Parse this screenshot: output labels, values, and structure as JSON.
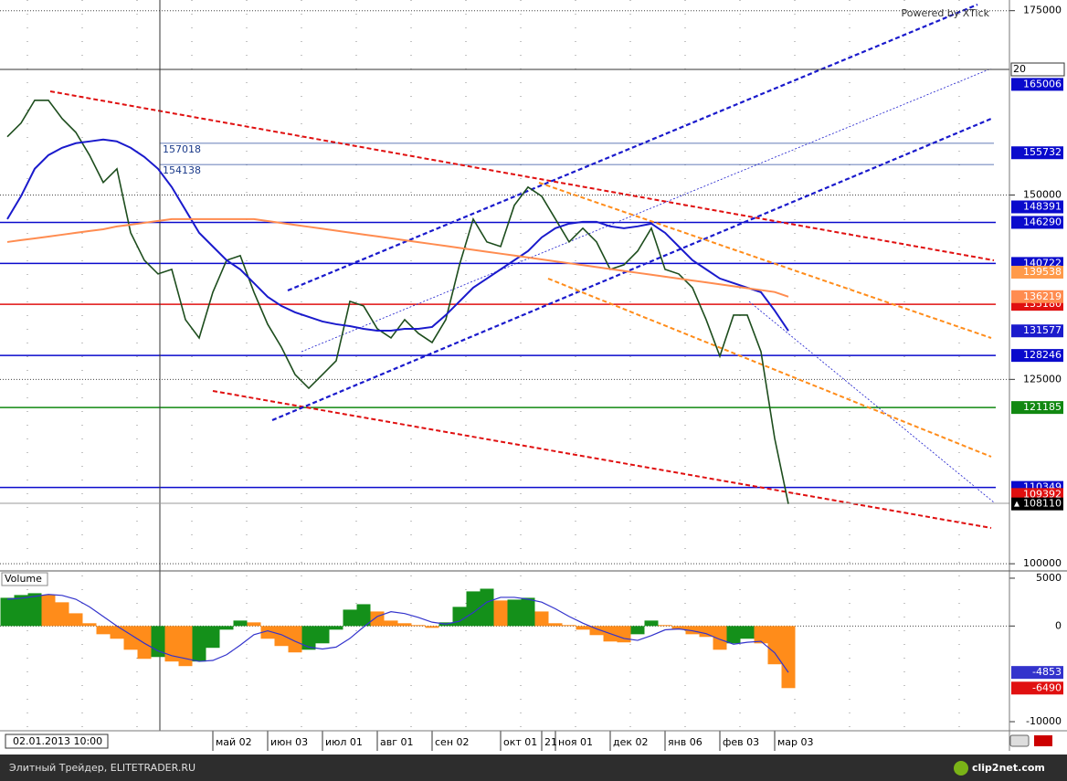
{
  "chart_data": [
    {
      "type": "line",
      "watermark": "Powered by XTick",
      "categories": [
        null,
        null,
        null,
        null,
        null,
        null,
        null,
        null,
        null,
        null,
        null,
        null,
        null,
        null,
        null,
        "май 02",
        null,
        null,
        null,
        "июн 03",
        null,
        null,
        null,
        "июл 01",
        null,
        null,
        null,
        "авг 01",
        null,
        null,
        null,
        "сен 02",
        null,
        null,
        null,
        null,
        "окт 01",
        null,
        null,
        "21",
        "ноя 01",
        null,
        null,
        null,
        "дек 02",
        null,
        null,
        null,
        "янв 06",
        null,
        null,
        null,
        "фев 03",
        null,
        null,
        null,
        "мар 03",
        null
      ],
      "series": [
        {
          "color": "#1d4d1d",
          "values": [
            157900,
            159750,
            162850,
            162850,
            160370,
            158500,
            155400,
            151700,
            153550,
            144900,
            141150,
            139300,
            139920,
            133100,
            130620,
            136820,
            141150,
            141780,
            136820,
            132480,
            129380,
            125660,
            123800,
            125660,
            127520,
            135580,
            134960,
            131860,
            130620,
            133100,
            131240,
            130000,
            133100,
            140540,
            146740,
            143640,
            143020,
            148600,
            151080,
            149840,
            146740,
            143640,
            145500,
            143640,
            139920,
            140540,
            142400,
            145500,
            139920,
            139300,
            137440,
            133100,
            128140,
            133720,
            133720,
            128760,
            117000,
            108110
          ]
        },
        {
          "color": "#1a1acc",
          "values": [
            146740,
            149840,
            153560,
            155410,
            156410,
            157030,
            157270,
            157520,
            157270,
            156410,
            155170,
            153560,
            151080,
            147980,
            144880,
            143020,
            141160,
            139920,
            138060,
            136200,
            134960,
            134090,
            133470,
            132850,
            132480,
            132230,
            131860,
            131610,
            131610,
            131860,
            131860,
            132110,
            133720,
            135580,
            137440,
            138680,
            139920,
            141160,
            142400,
            144260,
            145500,
            146120,
            146370,
            146370,
            145750,
            145500,
            145750,
            146120,
            144880,
            143020,
            141160,
            139920,
            138680,
            138060,
            137440,
            136820,
            134340,
            131577
          ]
        },
        {
          "color": "#ff8c50",
          "values": [
            143630,
            143880,
            144120,
            144370,
            144620,
            144870,
            145120,
            145360,
            145740,
            145980,
            146230,
            146480,
            146730,
            146730,
            146730,
            146730,
            146730,
            146730,
            146730,
            146470,
            146210,
            145950,
            145690,
            145430,
            145170,
            144910,
            144650,
            144390,
            144130,
            143870,
            143610,
            143350,
            143090,
            142830,
            142570,
            142310,
            142050,
            141790,
            141530,
            141270,
            141010,
            140750,
            140490,
            140230,
            139970,
            139710,
            139450,
            139190,
            138930,
            138670,
            138410,
            138150,
            137890,
            137630,
            137370,
            137110,
            136850,
            136219
          ]
        }
      ],
      "last_color": "#000000",
      "ylim": [
        99400,
        176200
      ],
      "yticks": [
        100000,
        125000,
        150000,
        175000
      ],
      "grid": true,
      "levels": [
        {
          "value": 165006,
          "color": "#0a0acc",
          "line": false
        },
        {
          "value": 155732,
          "color": "#0a0acc",
          "line": false
        },
        {
          "value": 148391,
          "color": "#0a0acc",
          "line": false
        },
        {
          "value": 146290,
          "color": "#0a0acc",
          "line": true
        },
        {
          "value": 140722,
          "color": "#0a0acc",
          "line": true
        },
        {
          "value": 139538,
          "color": "#ff9a4a",
          "line": false
        },
        {
          "value": 135180,
          "color": "#e01010",
          "line": true
        },
        {
          "value": 128246,
          "color": "#0a0acc",
          "line": true
        },
        {
          "value": 121185,
          "color": "#118811",
          "line": true
        },
        {
          "value": 110349,
          "color": "#0a0acc",
          "line": true
        },
        {
          "value": 109392,
          "color": "#e01010",
          "line": false
        }
      ],
      "marker_levels": [
        157018,
        154138
      ],
      "crosshair": {
        "label": "20",
        "date": "02.01.2013 10:00"
      }
    },
    {
      "type": "bar",
      "title": "Volume",
      "series": [
        {
          "type": "bar",
          "up_color": "#14901a",
          "down_color": "#ff8c1a",
          "values": [
            2950,
            3240,
            3430,
            3240,
            2480,
            1330,
            290,
            -860,
            -1330,
            -2480,
            -3430,
            -3240,
            -3710,
            -4190,
            -3710,
            -2280,
            -380,
            570,
            380,
            -1330,
            -2090,
            -2760,
            -2480,
            -1810,
            -380,
            1710,
            2280,
            1520,
            570,
            290,
            100,
            -190,
            380,
            2000,
            3620,
            3900,
            2670,
            2760,
            2950,
            1520,
            290,
            100,
            -380,
            -950,
            -1620,
            -1710,
            -860,
            570,
            100,
            -380,
            -860,
            -1140,
            -2480,
            -1810,
            -1330,
            -1810,
            -4000,
            -6490
          ],
          "last_color": "#e01010"
        },
        {
          "type": "line",
          "color": "#3333cc",
          "values": [
            2800,
            2900,
            3100,
            3300,
            3200,
            2800,
            2000,
            1000,
            0,
            -900,
            -1800,
            -2600,
            -3100,
            -3400,
            -3700,
            -3600,
            -3000,
            -2000,
            -900,
            -500,
            -900,
            -1600,
            -2200,
            -2400,
            -2200,
            -1300,
            -100,
            1000,
            1500,
            1300,
            900,
            400,
            200,
            500,
            1400,
            2500,
            3000,
            3000,
            2800,
            2500,
            1800,
            1000,
            300,
            -300,
            -800,
            -1300,
            -1500,
            -1000,
            -400,
            -300,
            -500,
            -800,
            -1400,
            -1900,
            -1700,
            -1600,
            -2800,
            -4853
          ]
        }
      ],
      "ylim": [
        -10950,
        5570
      ],
      "yticks": [
        5000,
        0,
        -10000
      ]
    }
  ],
  "footer": {
    "text": "Элитный Трейдер, ELITETRADER.RU",
    "brand": "clip2net.com"
  }
}
